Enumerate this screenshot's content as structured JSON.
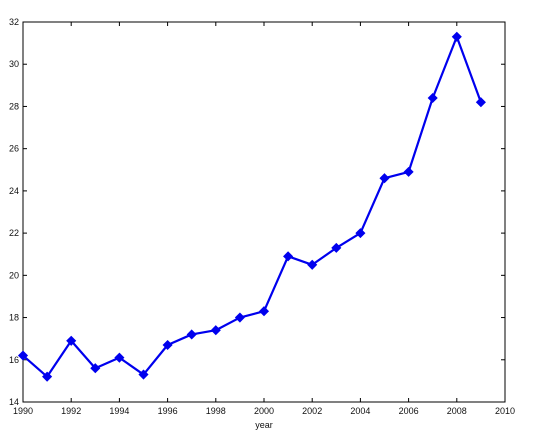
{
  "chart_data": {
    "type": "line",
    "xlabel": "year",
    "ylabel": "",
    "xlim": [
      1990,
      2010
    ],
    "ylim": [
      14,
      32
    ],
    "xticks": [
      1990,
      1992,
      1994,
      1996,
      1998,
      2000,
      2002,
      2004,
      2006,
      2008,
      2010
    ],
    "yticks": [
      14,
      16,
      18,
      20,
      22,
      24,
      26,
      28,
      30,
      32
    ],
    "grid": false,
    "legend": "none",
    "series": [
      {
        "color": "#0000ee",
        "marker": "diamond",
        "x": [
          1990,
          1991,
          1992,
          1993,
          1994,
          1995,
          1996,
          1997,
          1998,
          1999,
          2000,
          2001,
          2002,
          2003,
          2004,
          2005,
          2006,
          2007,
          2008,
          2009
        ],
        "y": [
          16.2,
          15.2,
          16.9,
          15.6,
          16.1,
          15.3,
          16.7,
          17.2,
          17.4,
          18.0,
          18.3,
          20.9,
          20.5,
          21.3,
          22.0,
          24.6,
          24.9,
          28.4,
          31.3,
          28.2
        ]
      }
    ]
  }
}
